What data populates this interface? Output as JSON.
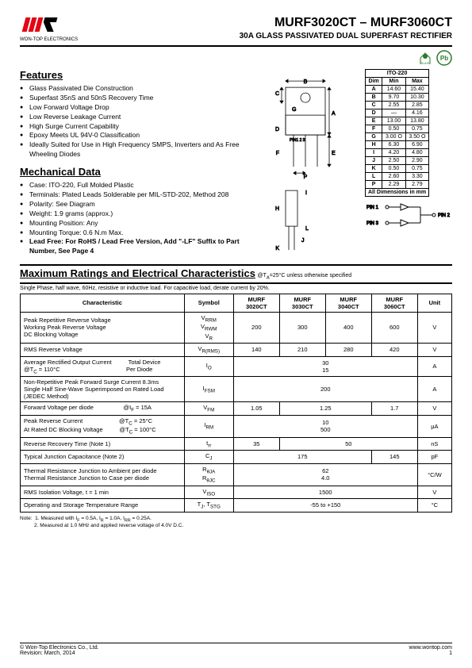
{
  "header": {
    "company": "WON-TOP ELECTRONICS",
    "partNumber": "MURF3020CT – MURF3060CT",
    "subtitle": "30A GLASS PASSIVATED DUAL SUPERFAST RECTIFIER"
  },
  "logo": {
    "bars": [
      "#e30613",
      "#e30613",
      "#e30613",
      "#000"
    ],
    "textColor": "#000"
  },
  "badges": {
    "rohs": "RoHS",
    "pb": "Pb"
  },
  "features": {
    "title": "Features",
    "items": [
      "Glass Passivated Die Construction",
      "Superfast 35nS and 50nS Recovery Time",
      "Low Forward Voltage Drop",
      "Low Reverse Leakage Current",
      "High Surge Current Capability",
      "Epoxy Meets UL 94V-0 Classification",
      "Ideally Suited for Use in High Frequency SMPS, Inverters and As Free Wheeling Diodes"
    ]
  },
  "mechanical": {
    "title": "Mechanical Data",
    "items": [
      "Case: ITO-220, Full Molded Plastic",
      "Terminals: Plated Leads Solderable per MIL-STD-202, Method 208",
      "Polarity: See Diagram",
      "Weight: 1.9 grams (approx.)",
      "Mounting Position: Any",
      "Mounting Torque: 0.6 N.m Max."
    ],
    "leadFree": "Lead Free: For RoHS / Lead Free Version, Add \"-LF\" Suffix to Part Number, See Page 4"
  },
  "dimensions": {
    "header": "ITO-220",
    "cols": [
      "Dim",
      "Min",
      "Max"
    ],
    "rows": [
      [
        "A",
        "14.60",
        "15.40"
      ],
      [
        "B",
        "9.70",
        "10.30"
      ],
      [
        "C",
        "2.55",
        "2.85"
      ],
      [
        "D",
        "—",
        "4.16"
      ],
      [
        "E",
        "13.00",
        "13.80"
      ],
      [
        "F",
        "0.50",
        "0.75"
      ],
      [
        "G",
        "3.00 O",
        "3.50 O"
      ],
      [
        "H",
        "6.30",
        "6.90"
      ],
      [
        "I",
        "4.20",
        "4.80"
      ],
      [
        "J",
        "2.50",
        "2.90"
      ],
      [
        "K",
        "0.50",
        "0.75"
      ],
      [
        "L",
        "2.60",
        "3.30"
      ],
      [
        "P",
        "2.29",
        "2.79"
      ]
    ],
    "footer": "All Dimensions in mm"
  },
  "pinLabels": [
    "PIN 1",
    "PIN 3",
    "PIN 2"
  ],
  "packageLabels": [
    "A",
    "B",
    "C",
    "D",
    "E",
    "F",
    "G",
    "H",
    "I",
    "J",
    "K",
    "L",
    "P"
  ],
  "pinText": "PIN1   2    3",
  "ratings": {
    "title": "Maximum Ratings and Electrical Characteristics",
    "condition": "@TA=25°C unless otherwise specified",
    "note": "Single Phase, half wave, 60Hz, resistive or inductive load. For capacitive load, derate current by 20%.",
    "cols": [
      "Characteristic",
      "Symbol",
      "MURF 3020CT",
      "MURF 3030CT",
      "MURF 3040CT",
      "MURF 3060CT",
      "Unit"
    ],
    "rows": [
      {
        "char": "Peak Repetitive Reverse Voltage<br>Working Peak Reverse Voltage<br>DC Blocking Voltage",
        "sym": "V<sub>RRM</sub><br>V<sub>RWM</sub><br>V<sub>R</sub>",
        "v": [
          "200",
          "300",
          "400",
          "600"
        ],
        "unit": "V"
      },
      {
        "char": "RMS Reverse Voltage",
        "sym": "V<sub>R(RMS)</sub>",
        "v": [
          "140",
          "210",
          "280",
          "420"
        ],
        "unit": "V"
      },
      {
        "char": "Average Rectified Output Current&nbsp;&nbsp;&nbsp;&nbsp;&nbsp;&nbsp;&nbsp;&nbsp;&nbsp;&nbsp;Total Device<br>@T<sub>C</sub> = 110°C&nbsp;&nbsp;&nbsp;&nbsp;&nbsp;&nbsp;&nbsp;&nbsp;&nbsp;&nbsp;&nbsp;&nbsp;&nbsp;&nbsp;&nbsp;&nbsp;&nbsp;&nbsp;&nbsp;&nbsp;&nbsp;&nbsp;&nbsp;&nbsp;&nbsp;&nbsp;&nbsp;&nbsp;&nbsp;&nbsp;&nbsp;&nbsp;&nbsp;&nbsp;&nbsp;&nbsp;&nbsp;&nbsp;&nbsp;&nbsp;Per Diode",
        "sym": "I<sub>O</sub>",
        "span4": "30<br>15",
        "unit": "A"
      },
      {
        "char": "Non-Repetitive Peak Forward Surge Current 8.3ms<br>Single Half Sine-Wave Superimposed on Rated Load<br>(JEDEC Method)",
        "sym": "I<sub>FSM</sub>",
        "span4": "200",
        "unit": "A"
      },
      {
        "char": "Forward Voltage per diode&nbsp;&nbsp;&nbsp;&nbsp;&nbsp;&nbsp;&nbsp;&nbsp;&nbsp;&nbsp;&nbsp;&nbsp;&nbsp;&nbsp;&nbsp;&nbsp;&nbsp;&nbsp;@I<sub>F</sub> = 15A",
        "sym": "V<sub>FM</sub>",
        "v": [
          "1.05",
          {
            "span": 2,
            "val": "1.25"
          },
          "1.7"
        ],
        "unit": "V"
      },
      {
        "char": "Peak Reverse Current&nbsp;&nbsp;&nbsp;&nbsp;&nbsp;&nbsp;&nbsp;&nbsp;&nbsp;&nbsp;&nbsp;&nbsp;&nbsp;&nbsp;&nbsp;&nbsp;&nbsp;&nbsp;&nbsp;&nbsp;&nbsp;&nbsp;@T<sub>C</sub> = 25°C<br>At Rated DC Blocking Voltage&nbsp;&nbsp;&nbsp;&nbsp;&nbsp;&nbsp;&nbsp;&nbsp;&nbsp;&nbsp;@T<sub>C</sub> = 100°C",
        "sym": "I<sub>RM</sub>",
        "span4": "10<br>500",
        "unit": "μA"
      },
      {
        "char": "Reverse Recovery Time (Note 1)",
        "sym": "t<sub>rr</sub>",
        "v": [
          "35",
          {
            "span": 3,
            "val": "50"
          }
        ],
        "unit": "nS"
      },
      {
        "char": "Typical Junction Capacitance (Note 2)",
        "sym": "C<sub>J</sub>",
        "v": [
          {
            "span": 3,
            "val": "175"
          },
          "145"
        ],
        "unit": "pF"
      },
      {
        "char": "Thermal Resistance Junction to Ambient per diode<br>Thermal Resistance Junction to Case per diode",
        "sym": "R<sub>θJA</sub><br>R<sub>θJC</sub>",
        "span4": "62<br>4.0",
        "unit": "°C/W"
      },
      {
        "char": "RMS Isolation Voltage, t = 1 min",
        "sym": "V<sub>ISO</sub>",
        "span4": "1500",
        "unit": "V"
      },
      {
        "char": "Operating and Storage Temperature Range",
        "sym": "T<sub>J</sub>, T<sub>STG</sub>",
        "span4": "-55 to +150",
        "unit": "°C"
      }
    ]
  },
  "notes": "Note:&nbsp;&nbsp;1. Measured with I<sub>F</sub> = 0.5A, I<sub>R</sub> = 1.0A, I<sub>RR</sub> = 0.25A.<br>&nbsp;&nbsp;&nbsp;&nbsp;&nbsp;&nbsp;&nbsp;&nbsp;&nbsp;&nbsp;2. Measured at 1.0 MHz and applied reverse voltage of 4.0V D.C.",
  "footer": {
    "left1": "© Won-Top Electronics Co., Ltd.",
    "left2": "Revision: March, 2014",
    "right": "www.wontop.com",
    "page": "1"
  }
}
